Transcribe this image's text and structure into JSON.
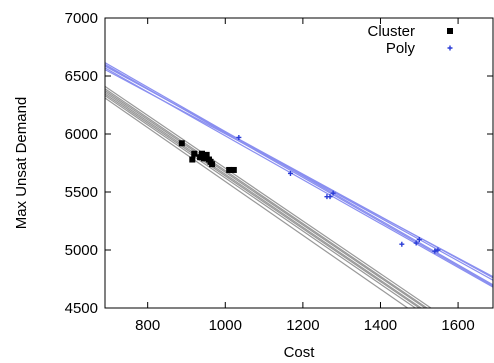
{
  "chart_data": {
    "type": "scatter",
    "title": "",
    "xlabel": "Cost",
    "ylabel": "Max Unsat Demand",
    "xlim": [
      690,
      1690
    ],
    "ylim": [
      4500,
      7000
    ],
    "xticks": [
      800,
      1000,
      1200,
      1400,
      1600
    ],
    "yticks": [
      4500,
      5000,
      5500,
      6000,
      6500,
      7000
    ],
    "legend_position": "top-right",
    "series": [
      {
        "name": "Cluster",
        "marker": "square",
        "color": "#000000",
        "points": [
          [
            888,
            5920
          ],
          [
            915,
            5780
          ],
          [
            920,
            5830
          ],
          [
            935,
            5800
          ],
          [
            940,
            5830
          ],
          [
            945,
            5790
          ],
          [
            952,
            5820
          ],
          [
            958,
            5780
          ],
          [
            962,
            5760
          ],
          [
            966,
            5740
          ],
          [
            1010,
            5690
          ],
          [
            1022,
            5690
          ]
        ]
      },
      {
        "name": "Poly",
        "marker": "plus",
        "color": "#2a3cd6",
        "points": [
          [
            1035,
            5970
          ],
          [
            1168,
            5660
          ],
          [
            1262,
            5460
          ],
          [
            1270,
            5460
          ],
          [
            1278,
            5490
          ],
          [
            1455,
            5050
          ],
          [
            1492,
            5060
          ],
          [
            1500,
            5090
          ],
          [
            1540,
            4990
          ],
          [
            1548,
            5000
          ]
        ]
      }
    ],
    "curve_bands": [
      {
        "color": "#999999",
        "lines": [
          [
            [
              690,
              6410
            ],
            [
              1530,
              4500
            ]
          ],
          [
            [
              690,
              6390
            ],
            [
              1520,
              4500
            ]
          ],
          [
            [
              690,
              6375
            ],
            [
              1515,
              4500
            ]
          ],
          [
            [
              690,
              6360
            ],
            [
              1505,
              4500
            ]
          ],
          [
            [
              690,
              6345
            ],
            [
              1500,
              4500
            ]
          ],
          [
            [
              690,
              6330
            ],
            [
              1490,
              4500
            ]
          ],
          [
            [
              690,
              6310
            ],
            [
              1470,
              4500
            ]
          ]
        ]
      },
      {
        "color": "#8a8ff0",
        "lines": [
          [
            [
              690,
              6615
            ],
            [
              1690,
              4700
            ]
          ],
          [
            [
              690,
              6600
            ],
            [
              1690,
              4690
            ]
          ],
          [
            [
              690,
              6590
            ],
            [
              1690,
              4740
            ]
          ],
          [
            [
              690,
              6585
            ],
            [
              1690,
              4760
            ]
          ],
          [
            [
              690,
              6570
            ],
            [
              1690,
              4680
            ]
          ],
          [
            [
              690,
              6555
            ],
            [
              1690,
              4770
            ]
          ]
        ]
      }
    ]
  }
}
